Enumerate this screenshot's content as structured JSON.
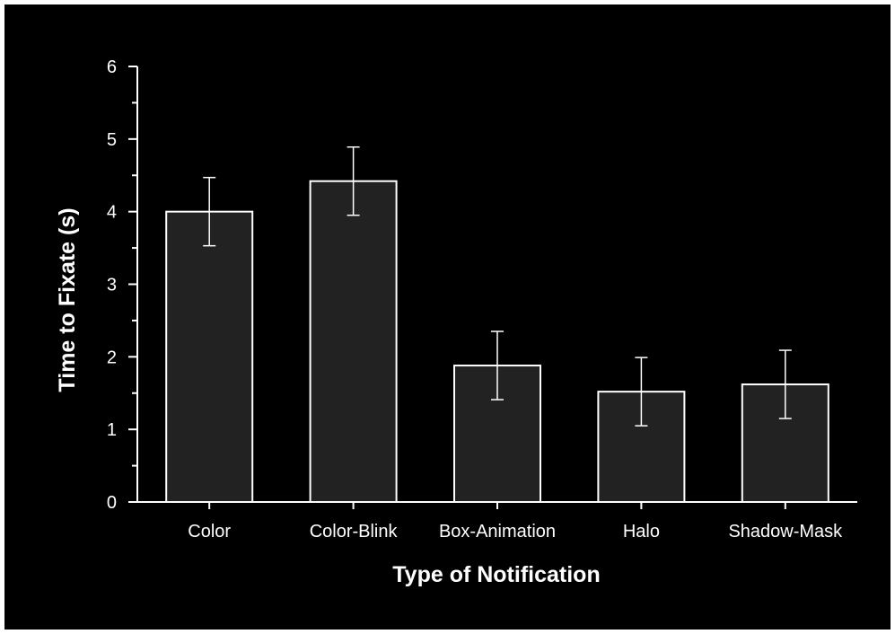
{
  "chart_data": {
    "type": "bar",
    "title": "",
    "xlabel": "Type of Notification",
    "ylabel": "Time to Fixate (s)",
    "categories": [
      "Color",
      "Color-Blink",
      "Box-Animation",
      "Halo",
      "Shadow-Mask"
    ],
    "values": [
      4.0,
      4.42,
      1.88,
      1.52,
      1.62
    ],
    "error": [
      0.47,
      0.47,
      0.47,
      0.47,
      0.47
    ],
    "ylim": [
      0,
      6
    ],
    "yticks": [
      "0",
      "1",
      "2",
      "3",
      "4",
      "5",
      "6"
    ],
    "grid": false,
    "legend": "none",
    "colors": {
      "background": "#000000",
      "bar_fill": "#222222",
      "bar_stroke": "#ffffff",
      "axis": "#ffffff",
      "text": "#ffffff"
    }
  }
}
